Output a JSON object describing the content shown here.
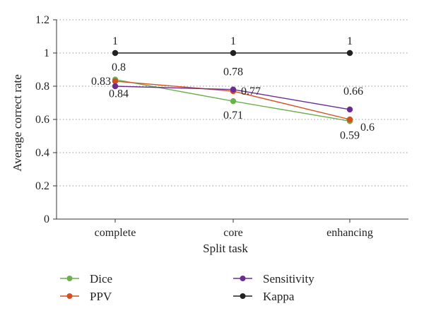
{
  "chart_data": {
    "type": "line",
    "title": "",
    "xlabel": "Split task",
    "ylabel": "Average correct rate",
    "categories": [
      "complete",
      "core",
      "enhancing"
    ],
    "ylim": [
      0,
      1.2
    ],
    "yticks": [
      "0",
      "0.2",
      "0.4",
      "0.6",
      "0.8",
      "1",
      "1.2"
    ],
    "grid": "horizontal-dotted",
    "legend_placement": "bottom",
    "series": [
      {
        "name": "Dice",
        "color": "#6ab04c",
        "values": [
          0.84,
          0.71,
          0.59
        ],
        "labels": [
          "0.84",
          "0.71",
          "0.59"
        ]
      },
      {
        "name": "PPV",
        "color": "#d4501f",
        "values": [
          0.83,
          0.77,
          0.6
        ],
        "labels": [
          "0.83",
          "0.77",
          "0.6"
        ]
      },
      {
        "name": "Sensitivity",
        "color": "#6a2c91",
        "values": [
          0.8,
          0.78,
          0.66
        ],
        "labels": [
          "0.8",
          "0.78",
          "0.66"
        ]
      },
      {
        "name": "Kappa",
        "color": "#222222",
        "values": [
          1,
          1,
          1
        ],
        "labels": [
          "1",
          "1",
          "1"
        ]
      }
    ]
  }
}
